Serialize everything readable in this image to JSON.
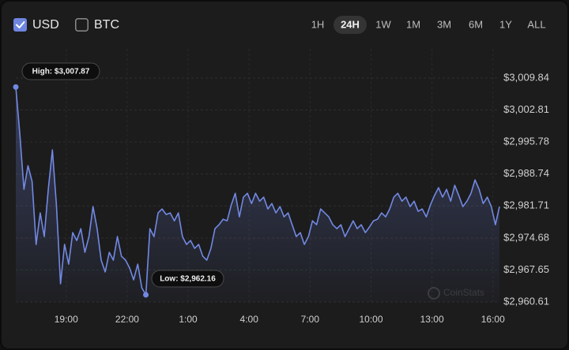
{
  "controls": {
    "currencies": [
      {
        "label": "USD",
        "checked": true
      },
      {
        "label": "BTC",
        "checked": false
      }
    ],
    "ranges": [
      "1H",
      "24H",
      "1W",
      "1M",
      "3M",
      "6M",
      "1Y",
      "ALL"
    ],
    "selected_range": "24H"
  },
  "chart_data": {
    "type": "line",
    "watermark": "CoinStats",
    "high_label": "High: $3,007.87",
    "low_label": "Low: $2,962.16",
    "high_index": 0,
    "low_index": 32,
    "series": [
      {
        "name": "USD",
        "color": "#7289e3",
        "values": [
          3007.87,
          2997.49,
          2985.37,
          2990.56,
          2987.1,
          2973.25,
          2980.18,
          2974.98,
          2985.37,
          2994.03,
          2981.91,
          2964.59,
          2973.25,
          2968.92,
          2975.85,
          2974.12,
          2976.71,
          2971.52,
          2974.98,
          2981.56,
          2976.71,
          2969.79,
          2967.19,
          2971.52,
          2969.79,
          2974.98,
          2970.65,
          2969.79,
          2968.06,
          2965.46,
          2968.92,
          2963.73,
          2962.16,
          2976.71,
          2974.98,
          2980.18,
          2981.04,
          2979.83,
          2980.18,
          2978.44,
          2980.18,
          2974.98,
          2973.25,
          2974.12,
          2972.38,
          2973.25,
          2970.65,
          2969.79,
          2972.38,
          2976.71,
          2977.58,
          2978.79,
          2978.44,
          2981.91,
          2984.5,
          2979.31,
          2983.64,
          2984.5,
          2982.25,
          2984.5,
          2982.77,
          2983.64,
          2981.04,
          2982.25,
          2980.18,
          2981.56,
          2979.31,
          2980.18,
          2977.58,
          2974.98,
          2975.85,
          2973.25,
          2974.98,
          2978.44,
          2977.58,
          2981.04,
          2980.18,
          2979.31,
          2977.58,
          2976.71,
          2977.58,
          2974.98,
          2976.71,
          2978.44,
          2976.71,
          2977.58,
          2975.85,
          2977.06,
          2978.44,
          2978.79,
          2980.18,
          2979.31,
          2981.04,
          2983.64,
          2984.5,
          2982.77,
          2983.64,
          2981.56,
          2982.77,
          2980.52,
          2981.04,
          2979.31,
          2981.91,
          2983.99,
          2985.72,
          2983.64,
          2985.37,
          2982.77,
          2986.24,
          2983.99,
          2981.56,
          2982.77,
          2984.5,
          2987.45,
          2985.37,
          2982.25,
          2983.64,
          2981.56,
          2977.58,
          2981.56
        ]
      }
    ],
    "xlim": [
      0,
      119
    ],
    "xticks": [
      {
        "value": 12.4,
        "label": "19:00"
      },
      {
        "value": 27.4,
        "label": "22:00"
      },
      {
        "value": 42.4,
        "label": "1:00"
      },
      {
        "value": 57.4,
        "label": "4:00"
      },
      {
        "value": 72.4,
        "label": "7:00"
      },
      {
        "value": 87.4,
        "label": "10:00"
      },
      {
        "value": 102.4,
        "label": "13:00"
      },
      {
        "value": 117.4,
        "label": "16:00"
      }
    ],
    "ylim": [
      2960.61,
      3009.84
    ],
    "yticks": [
      {
        "value": 2960.61,
        "label": "$2,960.61"
      },
      {
        "value": 2967.65,
        "label": "$2,967.65"
      },
      {
        "value": 2974.68,
        "label": "$2,974.68"
      },
      {
        "value": 2981.71,
        "label": "$2,981.71"
      },
      {
        "value": 2988.74,
        "label": "$2,988.74"
      },
      {
        "value": 2995.78,
        "label": "$2,995.78"
      },
      {
        "value": 3002.81,
        "label": "$3,002.81"
      },
      {
        "value": 3009.84,
        "label": "$3,009.84"
      }
    ],
    "grid": true
  }
}
